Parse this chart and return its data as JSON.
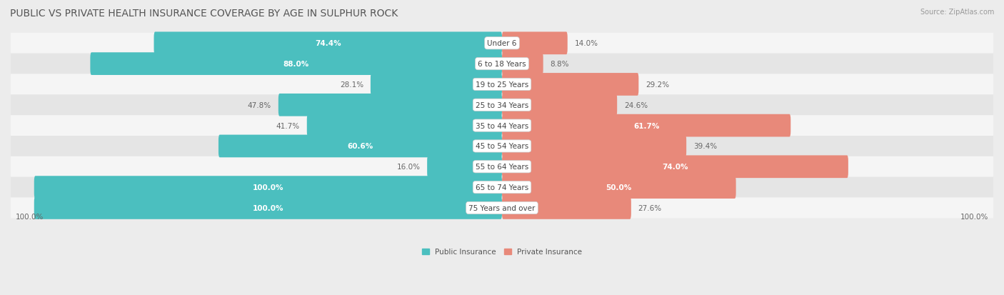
{
  "title": "PUBLIC VS PRIVATE HEALTH INSURANCE COVERAGE BY AGE IN SULPHUR ROCK",
  "source": "Source: ZipAtlas.com",
  "categories": [
    "Under 6",
    "6 to 18 Years",
    "19 to 25 Years",
    "25 to 34 Years",
    "35 to 44 Years",
    "45 to 54 Years",
    "55 to 64 Years",
    "65 to 74 Years",
    "75 Years and over"
  ],
  "public_values": [
    74.4,
    88.0,
    28.1,
    47.8,
    41.7,
    60.6,
    16.0,
    100.0,
    100.0
  ],
  "private_values": [
    14.0,
    8.8,
    29.2,
    24.6,
    61.7,
    39.4,
    74.0,
    50.0,
    27.6
  ],
  "public_color": "#4bbfbf",
  "private_color": "#e8897a",
  "public_label": "Public Insurance",
  "private_label": "Private Insurance",
  "bg_color": "#ececec",
  "row_bg_even": "#f5f5f5",
  "row_bg_odd": "#e5e5e5",
  "max_val": 100.0,
  "axis_label_left": "100.0%",
  "axis_label_right": "100.0%",
  "title_fontsize": 10,
  "label_fontsize": 7.5,
  "category_fontsize": 7.5
}
